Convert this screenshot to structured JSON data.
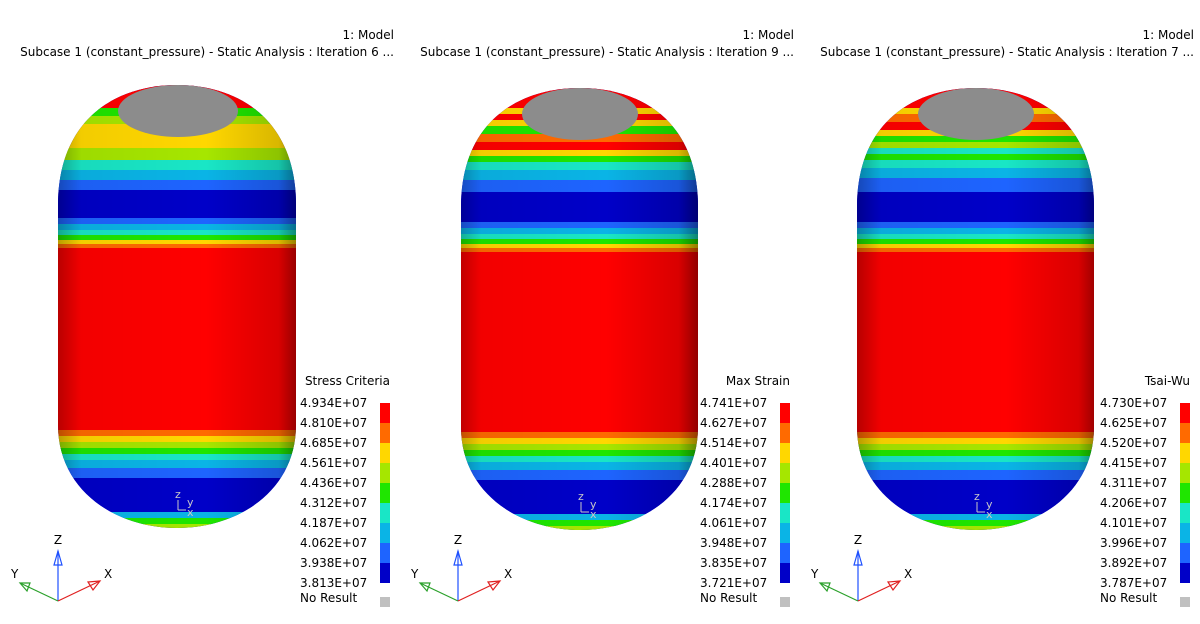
{
  "colors": {
    "scale": [
      "#ff0000",
      "#ff6a00",
      "#ffd700",
      "#a6e600",
      "#1fe600",
      "#19e6c6",
      "#0ab4e6",
      "#1e64ff",
      "#0000c8"
    ],
    "no_result": "#c0c0c0",
    "cap": "#8c8c8c",
    "triad_z": "#1e50ff",
    "triad_y": "#2aa02a",
    "triad_x": "#e02020"
  },
  "panels": [
    {
      "model_label": "1: Model",
      "subcase_label": "Subcase 1 (constant_pressure) - Static Analysis : Iteration 6 ...",
      "legend_title": "Stress Criteria",
      "legend_values": [
        "4.934E+07",
        "4.810E+07",
        "4.685E+07",
        "4.561E+07",
        "4.436E+07",
        "4.312E+07",
        "4.187E+07",
        "4.062E+07",
        "3.938E+07",
        "3.813E+07"
      ],
      "no_result_label": "No Result",
      "triad": {
        "z": "Z",
        "y": "Y",
        "x": "X"
      },
      "mini_triad": {
        "z": "z",
        "y": "y",
        "x": "x"
      }
    },
    {
      "model_label": "1: Model",
      "subcase_label": "Subcase 1 (constant_pressure) - Static Analysis : Iteration 9 ...",
      "legend_title": "Max Strain",
      "legend_values": [
        "4.741E+07",
        "4.627E+07",
        "4.514E+07",
        "4.401E+07",
        "4.288E+07",
        "4.174E+07",
        "4.061E+07",
        "3.948E+07",
        "3.835E+07",
        "3.721E+07"
      ],
      "no_result_label": "No Result",
      "triad": {
        "z": "Z",
        "y": "Y",
        "x": "X"
      },
      "mini_triad": {
        "z": "z",
        "y": "y",
        "x": "x"
      }
    },
    {
      "model_label": "1: Model",
      "subcase_label": "Subcase 1 (constant_pressure) - Static Analysis : Iteration 7 ...",
      "legend_title": "Tsai-Wu",
      "legend_values": [
        "4.730E+07",
        "4.625E+07",
        "4.520E+07",
        "4.415E+07",
        "4.311E+07",
        "4.206E+07",
        "4.101E+07",
        "3.996E+07",
        "3.892E+07",
        "3.787E+07"
      ],
      "no_result_label": "No Result",
      "triad": {
        "z": "Z",
        "y": "Y",
        "x": "X"
      },
      "mini_triad": {
        "z": "z",
        "y": "y",
        "x": "x"
      }
    }
  ]
}
